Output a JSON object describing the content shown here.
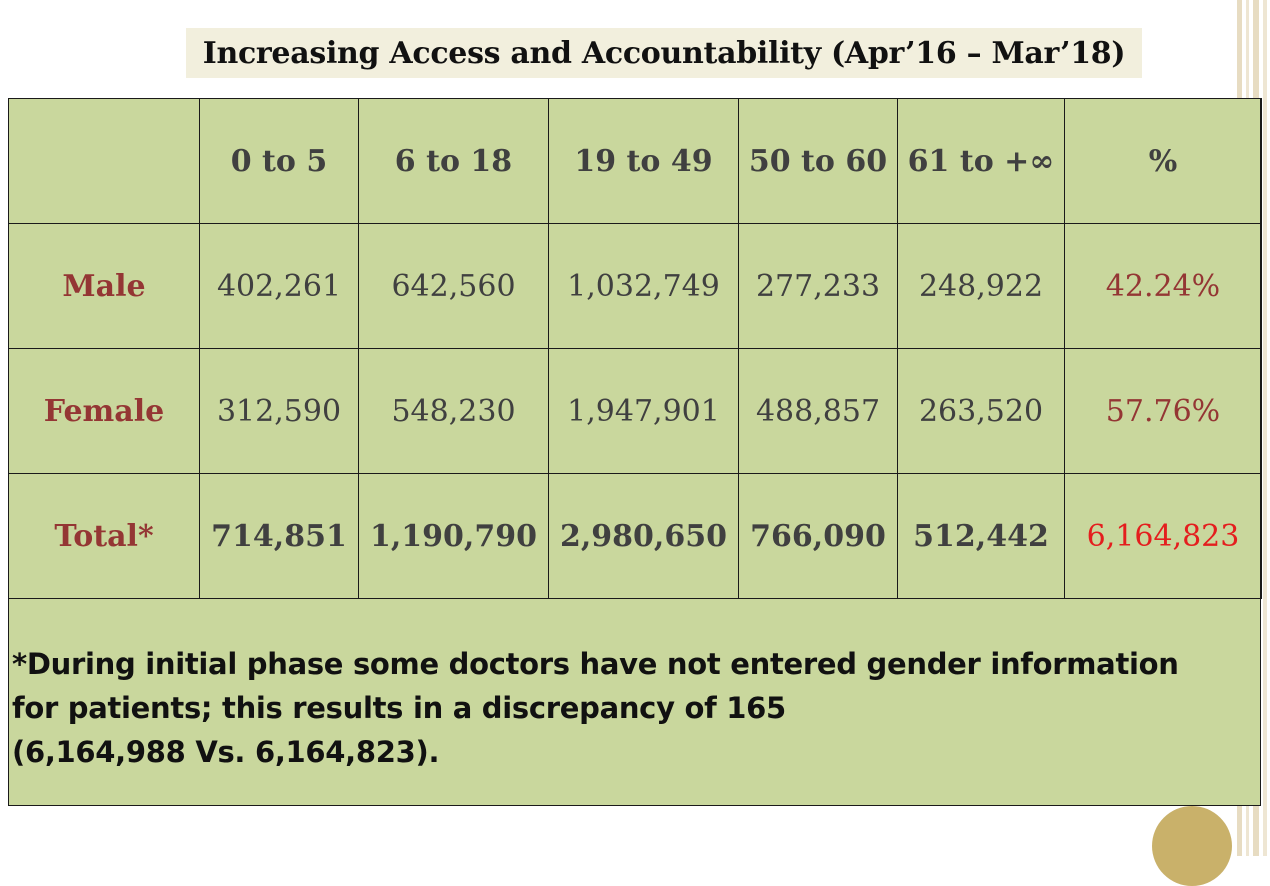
{
  "title": "Increasing Access and Accountability (Apr’16 – Mar’18)",
  "table": {
    "headers": [
      "",
      "0 to 5",
      "6 to 18",
      "19 to 49",
      "50 to 60",
      "61 to +∞",
      "%"
    ],
    "rows": [
      {
        "label": "Male",
        "values": [
          "402,261",
          "642,560",
          "1,032,749",
          "277,233",
          "248,922"
        ],
        "percent": "42.24%"
      },
      {
        "label": "Female",
        "values": [
          "312,590",
          "548,230",
          "1,947,901",
          "488,857",
          "263,520"
        ],
        "percent": "57.76%"
      },
      {
        "label": "Total*",
        "values": [
          "714,851",
          "1,190,790",
          "2,980,650",
          "766,090",
          "512,442"
        ],
        "percent": "6,164,823"
      }
    ]
  },
  "footnote": {
    "line1": "*During initial phase some doctors have not entered gender information",
    "line2": "for patients; this results in a discrepancy of 165",
    "line3": "(6,164,988 Vs. 6,164,823)."
  },
  "colors": {
    "cell_background": "#c9d79d",
    "label_red": "#943634",
    "total_red": "#e41e1e",
    "title_background": "#f2efdd"
  }
}
